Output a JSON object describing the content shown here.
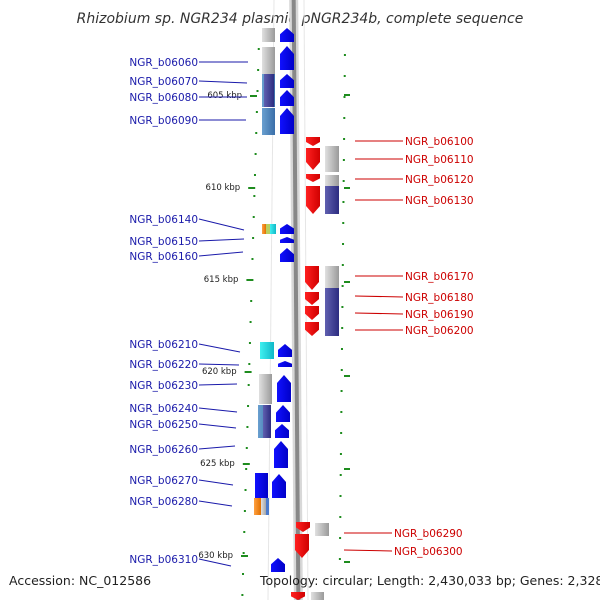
{
  "title": "Rhizobium sp. NGR234 plasmid pNGR234b, complete sequence",
  "accession": "Accession: NC_012586",
  "topology": "Topology: circular; Length: 2,430,033 bp; Genes: 2,328",
  "colors": {
    "left_label": "#1a1aaa",
    "right_label": "#cc0000",
    "backbone": "#888888",
    "tick": "#1e8c1e",
    "reverse_gene": "#0000ee",
    "forward_gene": "#ee0000"
  },
  "kbp_marks": [
    "605 kbp",
    "610 kbp",
    "615 kbp",
    "620 kbp",
    "625 kbp",
    "630 kbp"
  ],
  "left_genes": [
    "NGR_b06060",
    "NGR_b06070",
    "NGR_b06080",
    "NGR_b06090",
    "NGR_b06140",
    "NGR_b06150",
    "NGR_b06160",
    "NGR_b06210",
    "NGR_b06220",
    "NGR_b06230",
    "NGR_b06240",
    "NGR_b06250",
    "NGR_b06260",
    "NGR_b06270",
    "NGR_b06280",
    "NGR_b06310"
  ],
  "right_genes": [
    "NGR_b06100",
    "NGR_b06110",
    "NGR_b06120",
    "NGR_b06130",
    "NGR_b06170",
    "NGR_b06180",
    "NGR_b06190",
    "NGR_b06200",
    "NGR_b06290",
    "NGR_b06300"
  ]
}
